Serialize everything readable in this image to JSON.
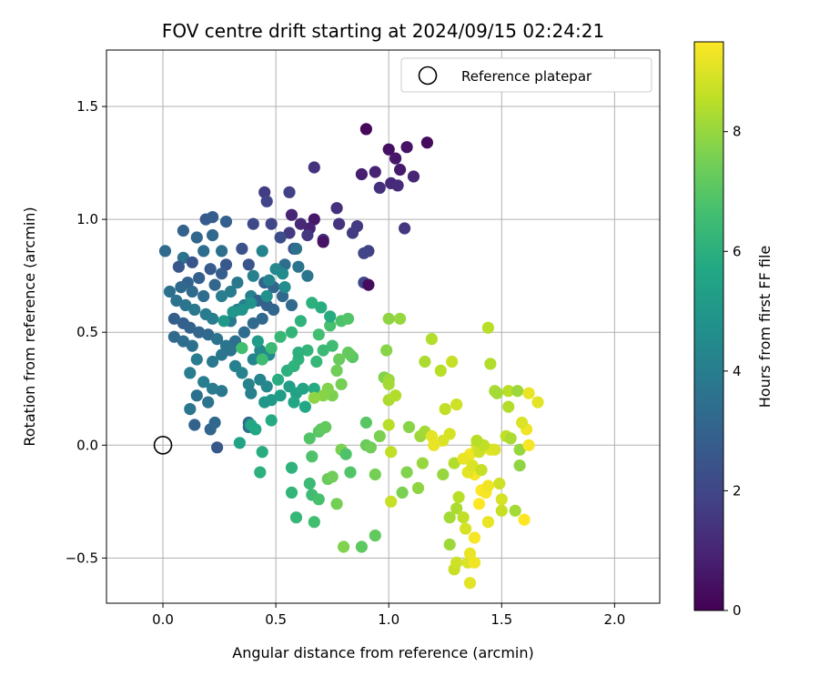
{
  "chart_data": {
    "type": "scatter",
    "title": "FOV centre drift starting at 2024/09/15 02:24:21",
    "xlabel": "Angular distance from reference (arcmin)",
    "ylabel": "Rotation from reference (arcmin)",
    "xlim": [
      -0.25,
      2.2
    ],
    "ylim": [
      -0.7,
      1.75
    ],
    "xticks": [
      0.0,
      0.5,
      1.0,
      1.5,
      2.0
    ],
    "xtick_labels": [
      "0.0",
      "0.5",
      "1.0",
      "1.5",
      "2.0"
    ],
    "yticks": [
      -0.5,
      0.0,
      0.5,
      1.0,
      1.5
    ],
    "ytick_labels": [
      "−0.5",
      "0.0",
      "0.5",
      "1.0",
      "1.5"
    ],
    "grid": true,
    "legend": {
      "placement": "top-right",
      "entries": [
        "Reference platepar"
      ]
    },
    "reference_point": {
      "x": 0.0,
      "y": 0.0,
      "label": "Reference platepar"
    },
    "colorbar": {
      "label": "Hours from first FF file",
      "range": [
        0,
        9.5
      ],
      "ticks": [
        0,
        2,
        4,
        6,
        8
      ],
      "tick_labels": [
        "0",
        "2",
        "4",
        "6",
        "8"
      ],
      "colormap": "viridis"
    },
    "points": [
      [
        0.9,
        1.4,
        0.2
      ],
      [
        1.17,
        1.34,
        0.3
      ],
      [
        1.0,
        1.31,
        0.4
      ],
      [
        1.08,
        1.32,
        0.5
      ],
      [
        1.03,
        1.27,
        0.6
      ],
      [
        1.05,
        1.22,
        0.7
      ],
      [
        0.88,
        1.2,
        0.8
      ],
      [
        0.94,
        1.21,
        0.9
      ],
      [
        1.11,
        1.19,
        1.0
      ],
      [
        1.01,
        1.16,
        1.1
      ],
      [
        1.04,
        1.15,
        1.2
      ],
      [
        0.96,
        1.14,
        1.3
      ],
      [
        0.67,
        1.23,
        1.4
      ],
      [
        1.07,
        0.96,
        1.5
      ],
      [
        0.86,
        0.97,
        1.6
      ],
      [
        0.84,
        0.94,
        1.7
      ],
      [
        0.91,
        0.86,
        1.8
      ],
      [
        0.89,
        0.85,
        1.9
      ],
      [
        0.89,
        0.72,
        2.0
      ],
      [
        0.91,
        0.71,
        0.3
      ],
      [
        0.67,
        1.0,
        0.6
      ],
      [
        0.65,
        0.96,
        0.9
      ],
      [
        0.57,
        1.02,
        1.0
      ],
      [
        0.61,
        0.98,
        1.1
      ],
      [
        0.71,
        0.91,
        1.2
      ],
      [
        0.77,
        1.05,
        1.3
      ],
      [
        0.78,
        0.98,
        1.4
      ],
      [
        0.71,
        0.9,
        0.5
      ],
      [
        0.64,
        0.93,
        1.5
      ],
      [
        0.56,
        0.94,
        1.6
      ],
      [
        0.45,
        1.12,
        1.7
      ],
      [
        0.56,
        1.12,
        1.8
      ],
      [
        0.46,
        1.08,
        1.9
      ],
      [
        0.48,
        0.98,
        2.0
      ],
      [
        0.4,
        0.98,
        2.1
      ],
      [
        0.52,
        0.92,
        2.2
      ],
      [
        0.58,
        0.87,
        2.3
      ],
      [
        0.35,
        0.87,
        2.4
      ],
      [
        0.38,
        0.8,
        2.5
      ],
      [
        0.28,
        0.8,
        2.6
      ],
      [
        0.19,
        1.0,
        2.7
      ],
      [
        0.22,
        1.01,
        2.8
      ],
      [
        0.28,
        0.99,
        2.9
      ],
      [
        0.09,
        0.95,
        3.0
      ],
      [
        0.15,
        0.92,
        3.1
      ],
      [
        0.22,
        0.93,
        3.2
      ],
      [
        0.01,
        0.86,
        3.3
      ],
      [
        0.18,
        0.86,
        3.4
      ],
      [
        0.26,
        0.86,
        3.5
      ],
      [
        0.09,
        0.83,
        3.6
      ],
      [
        0.13,
        0.81,
        2.5
      ],
      [
        0.07,
        0.79,
        2.6
      ],
      [
        0.21,
        0.78,
        2.7
      ],
      [
        0.26,
        0.76,
        2.8
      ],
      [
        0.16,
        0.74,
        2.9
      ],
      [
        0.11,
        0.72,
        3.0
      ],
      [
        0.23,
        0.71,
        3.1
      ],
      [
        0.08,
        0.7,
        3.2
      ],
      [
        0.13,
        0.68,
        3.3
      ],
      [
        0.18,
        0.66,
        3.4
      ],
      [
        0.03,
        0.68,
        3.5
      ],
      [
        0.06,
        0.64,
        3.6
      ],
      [
        0.1,
        0.62,
        3.7
      ],
      [
        0.14,
        0.6,
        3.8
      ],
      [
        0.19,
        0.58,
        3.9
      ],
      [
        0.22,
        0.56,
        4.0
      ],
      [
        0.05,
        0.56,
        2.8
      ],
      [
        0.09,
        0.54,
        2.9
      ],
      [
        0.12,
        0.52,
        3.0
      ],
      [
        0.16,
        0.5,
        3.1
      ],
      [
        0.2,
        0.49,
        3.2
      ],
      [
        0.05,
        0.48,
        3.3
      ],
      [
        0.09,
        0.46,
        3.4
      ],
      [
        0.13,
        0.44,
        3.5
      ],
      [
        0.24,
        0.47,
        3.6
      ],
      [
        0.28,
        0.44,
        3.7
      ],
      [
        0.3,
        0.55,
        3.8
      ],
      [
        0.33,
        0.6,
        3.9
      ],
      [
        0.36,
        0.62,
        4.0
      ],
      [
        0.39,
        0.66,
        4.1
      ],
      [
        0.42,
        0.64,
        2.9
      ],
      [
        0.46,
        0.62,
        3.0
      ],
      [
        0.49,
        0.6,
        3.1
      ],
      [
        0.44,
        0.56,
        3.2
      ],
      [
        0.4,
        0.54,
        3.3
      ],
      [
        0.36,
        0.5,
        3.4
      ],
      [
        0.32,
        0.46,
        3.5
      ],
      [
        0.3,
        0.42,
        3.6
      ],
      [
        0.26,
        0.4,
        3.7
      ],
      [
        0.22,
        0.37,
        3.8
      ],
      [
        0.15,
        0.38,
        3.9
      ],
      [
        0.12,
        0.32,
        4.0
      ],
      [
        0.32,
        0.35,
        4.1
      ],
      [
        0.35,
        0.32,
        4.2
      ],
      [
        0.4,
        0.38,
        4.3
      ],
      [
        0.43,
        0.42,
        4.4
      ],
      [
        0.47,
        0.4,
        4.5
      ],
      [
        0.45,
        0.72,
        3.0
      ],
      [
        0.49,
        0.7,
        3.1
      ],
      [
        0.53,
        0.66,
        3.2
      ],
      [
        0.57,
        0.62,
        3.3
      ],
      [
        0.54,
        0.8,
        3.4
      ],
      [
        0.59,
        0.87,
        3.5
      ],
      [
        0.6,
        0.79,
        3.6
      ],
      [
        0.64,
        0.75,
        3.7
      ],
      [
        0.33,
        0.72,
        3.8
      ],
      [
        0.3,
        0.68,
        3.9
      ],
      [
        0.26,
        0.66,
        4.0
      ],
      [
        0.4,
        0.75,
        4.1
      ],
      [
        0.44,
        0.86,
        4.2
      ],
      [
        0.47,
        0.73,
        4.3
      ],
      [
        0.5,
        0.78,
        4.4
      ],
      [
        0.53,
        0.76,
        4.5
      ],
      [
        0.54,
        0.7,
        4.6
      ],
      [
        0.46,
        0.66,
        4.7
      ],
      [
        0.39,
        0.63,
        4.8
      ],
      [
        0.35,
        0.6,
        4.9
      ],
      [
        0.31,
        0.59,
        5.0
      ],
      [
        0.27,
        0.55,
        5.1
      ],
      [
        0.42,
        0.46,
        5.2
      ],
      [
        0.15,
        0.22,
        3.5
      ],
      [
        0.2,
        0.19,
        3.6
      ],
      [
        0.12,
        0.16,
        3.7
      ],
      [
        0.26,
        0.24,
        3.8
      ],
      [
        0.22,
        0.25,
        3.9
      ],
      [
        0.18,
        0.28,
        4.0
      ],
      [
        0.39,
        0.23,
        4.1
      ],
      [
        0.38,
        0.27,
        4.2
      ],
      [
        0.43,
        0.29,
        4.3
      ],
      [
        0.46,
        0.26,
        4.4
      ],
      [
        0.14,
        0.09,
        3.0
      ],
      [
        0.21,
        0.07,
        3.1
      ],
      [
        0.23,
        0.1,
        3.2
      ],
      [
        0.38,
        0.1,
        3.3
      ],
      [
        0.24,
        -0.01,
        2.6
      ],
      [
        0.38,
        0.08,
        3.4
      ],
      [
        0.45,
        0.19,
        5.0
      ],
      [
        0.48,
        0.2,
        5.1
      ],
      [
        0.52,
        0.22,
        5.2
      ],
      [
        0.56,
        0.26,
        5.3
      ],
      [
        0.59,
        0.23,
        5.4
      ],
      [
        0.62,
        0.25,
        5.5
      ],
      [
        0.58,
        0.19,
        5.6
      ],
      [
        0.63,
        0.17,
        5.7
      ],
      [
        0.67,
        0.25,
        5.8
      ],
      [
        0.51,
        0.29,
        5.9
      ],
      [
        0.55,
        0.33,
        6.0
      ],
      [
        0.6,
        0.38,
        6.1
      ],
      [
        0.64,
        0.42,
        6.2
      ],
      [
        0.68,
        0.37,
        6.3
      ],
      [
        0.71,
        0.42,
        6.4
      ],
      [
        0.75,
        0.44,
        6.5
      ],
      [
        0.69,
        0.49,
        6.6
      ],
      [
        0.74,
        0.53,
        6.7
      ],
      [
        0.79,
        0.55,
        6.8
      ],
      [
        0.82,
        0.56,
        6.9
      ],
      [
        0.74,
        0.57,
        5.8
      ],
      [
        0.7,
        0.61,
        5.9
      ],
      [
        0.66,
        0.63,
        6.0
      ],
      [
        0.61,
        0.55,
        6.1
      ],
      [
        0.57,
        0.5,
        6.2
      ],
      [
        0.52,
        0.48,
        6.3
      ],
      [
        0.48,
        0.43,
        6.4
      ],
      [
        0.44,
        0.38,
        6.5
      ],
      [
        0.35,
        0.43,
        6.6
      ],
      [
        0.34,
        0.01,
        5.5
      ],
      [
        0.39,
        0.09,
        5.6
      ],
      [
        0.41,
        0.07,
        5.7
      ],
      [
        0.48,
        0.11,
        5.8
      ],
      [
        0.44,
        -0.03,
        5.9
      ],
      [
        0.43,
        -0.12,
        6.0
      ],
      [
        0.57,
        -0.1,
        6.1
      ],
      [
        0.57,
        -0.21,
        6.2
      ],
      [
        0.59,
        -0.32,
        6.3
      ],
      [
        0.65,
        -0.17,
        6.4
      ],
      [
        0.66,
        -0.22,
        6.5
      ],
      [
        0.67,
        -0.34,
        6.6
      ],
      [
        0.69,
        -0.24,
        6.7
      ],
      [
        0.66,
        -0.05,
        6.8
      ],
      [
        0.65,
        0.03,
        6.9
      ],
      [
        0.69,
        0.06,
        7.0
      ],
      [
        0.7,
        0.07,
        7.1
      ],
      [
        0.72,
        0.08,
        7.2
      ],
      [
        0.73,
        -0.15,
        7.3
      ],
      [
        0.75,
        -0.14,
        7.4
      ],
      [
        0.77,
        -0.26,
        7.5
      ],
      [
        0.79,
        -0.02,
        7.6
      ],
      [
        0.8,
        -0.45,
        7.7
      ],
      [
        0.81,
        -0.04,
        6.8
      ],
      [
        0.83,
        -0.12,
        6.9
      ],
      [
        0.84,
        0.39,
        7.0
      ],
      [
        0.83,
        0.4,
        7.1
      ],
      [
        0.82,
        0.41,
        7.2
      ],
      [
        0.78,
        0.38,
        7.3
      ],
      [
        0.77,
        0.33,
        7.4
      ],
      [
        0.79,
        0.27,
        7.5
      ],
      [
        0.75,
        0.22,
        7.6
      ],
      [
        0.73,
        0.25,
        7.7
      ],
      [
        0.71,
        0.22,
        7.8
      ],
      [
        0.67,
        0.21,
        7.9
      ],
      [
        0.6,
        0.41,
        6.0
      ],
      [
        0.58,
        0.35,
        6.1
      ],
      [
        0.9,
        0.1,
        7.0
      ],
      [
        0.88,
        -0.45,
        7.1
      ],
      [
        0.94,
        -0.4,
        7.2
      ],
      [
        0.9,
        0.0,
        7.3
      ],
      [
        0.92,
        -0.01,
        7.4
      ],
      [
        0.94,
        -0.13,
        7.5
      ],
      [
        0.96,
        0.04,
        7.6
      ],
      [
        0.98,
        0.3,
        7.7
      ],
      [
        0.99,
        0.42,
        7.8
      ],
      [
        1.0,
        0.56,
        7.9
      ],
      [
        1.05,
        0.56,
        8.0
      ],
      [
        1.0,
        0.29,
        8.1
      ],
      [
        1.0,
        0.27,
        8.2
      ],
      [
        1.0,
        0.2,
        8.3
      ],
      [
        1.03,
        0.22,
        8.4
      ],
      [
        1.0,
        0.09,
        8.5
      ],
      [
        1.01,
        -0.03,
        8.6
      ],
      [
        1.01,
        -0.25,
        8.7
      ],
      [
        1.06,
        -0.21,
        7.6
      ],
      [
        1.08,
        -0.12,
        7.7
      ],
      [
        1.09,
        0.08,
        7.8
      ],
      [
        1.13,
        -0.19,
        7.9
      ],
      [
        1.15,
        -0.08,
        8.0
      ],
      [
        1.14,
        0.04,
        8.1
      ],
      [
        1.16,
        0.06,
        8.2
      ],
      [
        1.16,
        0.37,
        8.3
      ],
      [
        1.19,
        0.47,
        8.4
      ],
      [
        1.23,
        0.33,
        8.5
      ],
      [
        1.25,
        0.16,
        8.6
      ],
      [
        1.28,
        0.37,
        8.7
      ],
      [
        1.3,
        0.18,
        8.8
      ],
      [
        1.27,
        0.05,
        8.9
      ],
      [
        1.24,
        0.02,
        9.0
      ],
      [
        1.19,
        0.04,
        9.1
      ],
      [
        1.2,
        0.0,
        9.2
      ],
      [
        1.24,
        -0.13,
        8.0
      ],
      [
        1.27,
        -0.44,
        8.1
      ],
      [
        1.27,
        -0.32,
        8.2
      ],
      [
        1.3,
        -0.28,
        8.3
      ],
      [
        1.29,
        -0.08,
        8.4
      ],
      [
        1.31,
        -0.23,
        8.5
      ],
      [
        1.33,
        -0.32,
        8.6
      ],
      [
        1.29,
        -0.55,
        8.7
      ],
      [
        1.3,
        -0.52,
        8.8
      ],
      [
        1.34,
        -0.37,
        8.9
      ],
      [
        1.35,
        -0.52,
        9.0
      ],
      [
        1.36,
        -0.61,
        9.1
      ],
      [
        1.36,
        -0.48,
        9.2
      ],
      [
        1.38,
        -0.52,
        9.3
      ],
      [
        1.38,
        -0.41,
        9.4
      ],
      [
        1.4,
        -0.26,
        9.5
      ],
      [
        1.41,
        -0.2,
        9.5
      ],
      [
        1.43,
        -0.21,
        9.4
      ],
      [
        1.44,
        -0.18,
        9.3
      ],
      [
        1.44,
        -0.34,
        9.2
      ],
      [
        1.45,
        -0.02,
        9.1
      ],
      [
        1.47,
        -0.02,
        9.0
      ],
      [
        1.5,
        -0.24,
        8.9
      ],
      [
        1.49,
        -0.17,
        8.8
      ],
      [
        1.5,
        -0.29,
        8.7
      ],
      [
        1.52,
        0.04,
        8.6
      ],
      [
        1.53,
        0.24,
        8.5
      ],
      [
        1.53,
        0.17,
        8.4
      ],
      [
        1.54,
        0.03,
        8.3
      ],
      [
        1.56,
        -0.29,
        8.2
      ],
      [
        1.57,
        0.24,
        8.1
      ],
      [
        1.58,
        -0.02,
        8.0
      ],
      [
        1.58,
        -0.09,
        7.9
      ],
      [
        1.6,
        -0.33,
        9.5
      ],
      [
        1.62,
        0.0,
        9.4
      ],
      [
        1.61,
        0.07,
        9.3
      ],
      [
        1.62,
        0.23,
        9.2
      ],
      [
        1.66,
        0.19,
        9.1
      ],
      [
        1.59,
        0.1,
        9.0
      ],
      [
        1.44,
        0.52,
        8.5
      ],
      [
        1.45,
        0.36,
        8.4
      ],
      [
        1.47,
        0.24,
        8.3
      ],
      [
        1.48,
        0.23,
        8.2
      ],
      [
        1.38,
        -0.13,
        9.4
      ],
      [
        1.36,
        -0.04,
        9.3
      ],
      [
        1.33,
        -0.06,
        9.2
      ],
      [
        1.35,
        -0.12,
        9.1
      ],
      [
        1.37,
        -0.09,
        9.0
      ],
      [
        1.39,
        0.0,
        8.9
      ],
      [
        1.4,
        -0.03,
        8.8
      ],
      [
        1.41,
        -0.11,
        8.7
      ],
      [
        1.42,
        0.0,
        8.6
      ],
      [
        1.39,
        0.02,
        8.5
      ]
    ]
  }
}
